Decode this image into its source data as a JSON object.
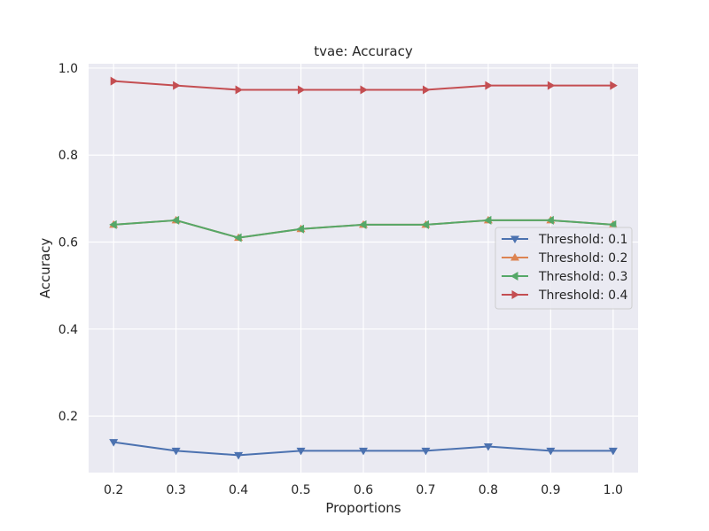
{
  "chart_data": {
    "type": "line",
    "title": "tvae: Accuracy",
    "xlabel": "Proportions",
    "ylabel": "Accuracy",
    "x": [
      0.2,
      0.3,
      0.4,
      0.5,
      0.6,
      0.7,
      0.8,
      0.9,
      1.0
    ],
    "x_tick_labels": [
      "0.2",
      "0.3",
      "0.4",
      "0.5",
      "0.6",
      "0.7",
      "0.8",
      "0.9",
      "1.0"
    ],
    "y_ticks": [
      0.2,
      0.4,
      0.6,
      0.8,
      1.0
    ],
    "y_tick_labels": [
      "0.2",
      "0.4",
      "0.6",
      "0.8",
      "1.0"
    ],
    "xlim": [
      0.16,
      1.04
    ],
    "ylim": [
      0.07,
      1.01
    ],
    "grid": true,
    "background": "#eaeaf2",
    "legend_position": "center-right",
    "series": [
      {
        "name": "Threshold: 0.1",
        "color": "#4c72b0",
        "marker": "triangle-down",
        "values": [
          0.14,
          0.12,
          0.11,
          0.12,
          0.12,
          0.12,
          0.13,
          0.12,
          0.12
        ]
      },
      {
        "name": "Threshold: 0.2",
        "color": "#dd8452",
        "marker": "triangle-up",
        "values": [
          0.64,
          0.65,
          0.61,
          0.63,
          0.64,
          0.64,
          0.65,
          0.65,
          0.64
        ]
      },
      {
        "name": "Threshold: 0.3",
        "color": "#55a868",
        "marker": "triangle-left",
        "values": [
          0.64,
          0.65,
          0.61,
          0.63,
          0.64,
          0.64,
          0.65,
          0.65,
          0.64
        ]
      },
      {
        "name": "Threshold: 0.4",
        "color": "#c44e52",
        "marker": "triangle-right",
        "values": [
          0.97,
          0.96,
          0.95,
          0.95,
          0.95,
          0.95,
          0.96,
          0.96,
          0.96
        ]
      }
    ]
  }
}
